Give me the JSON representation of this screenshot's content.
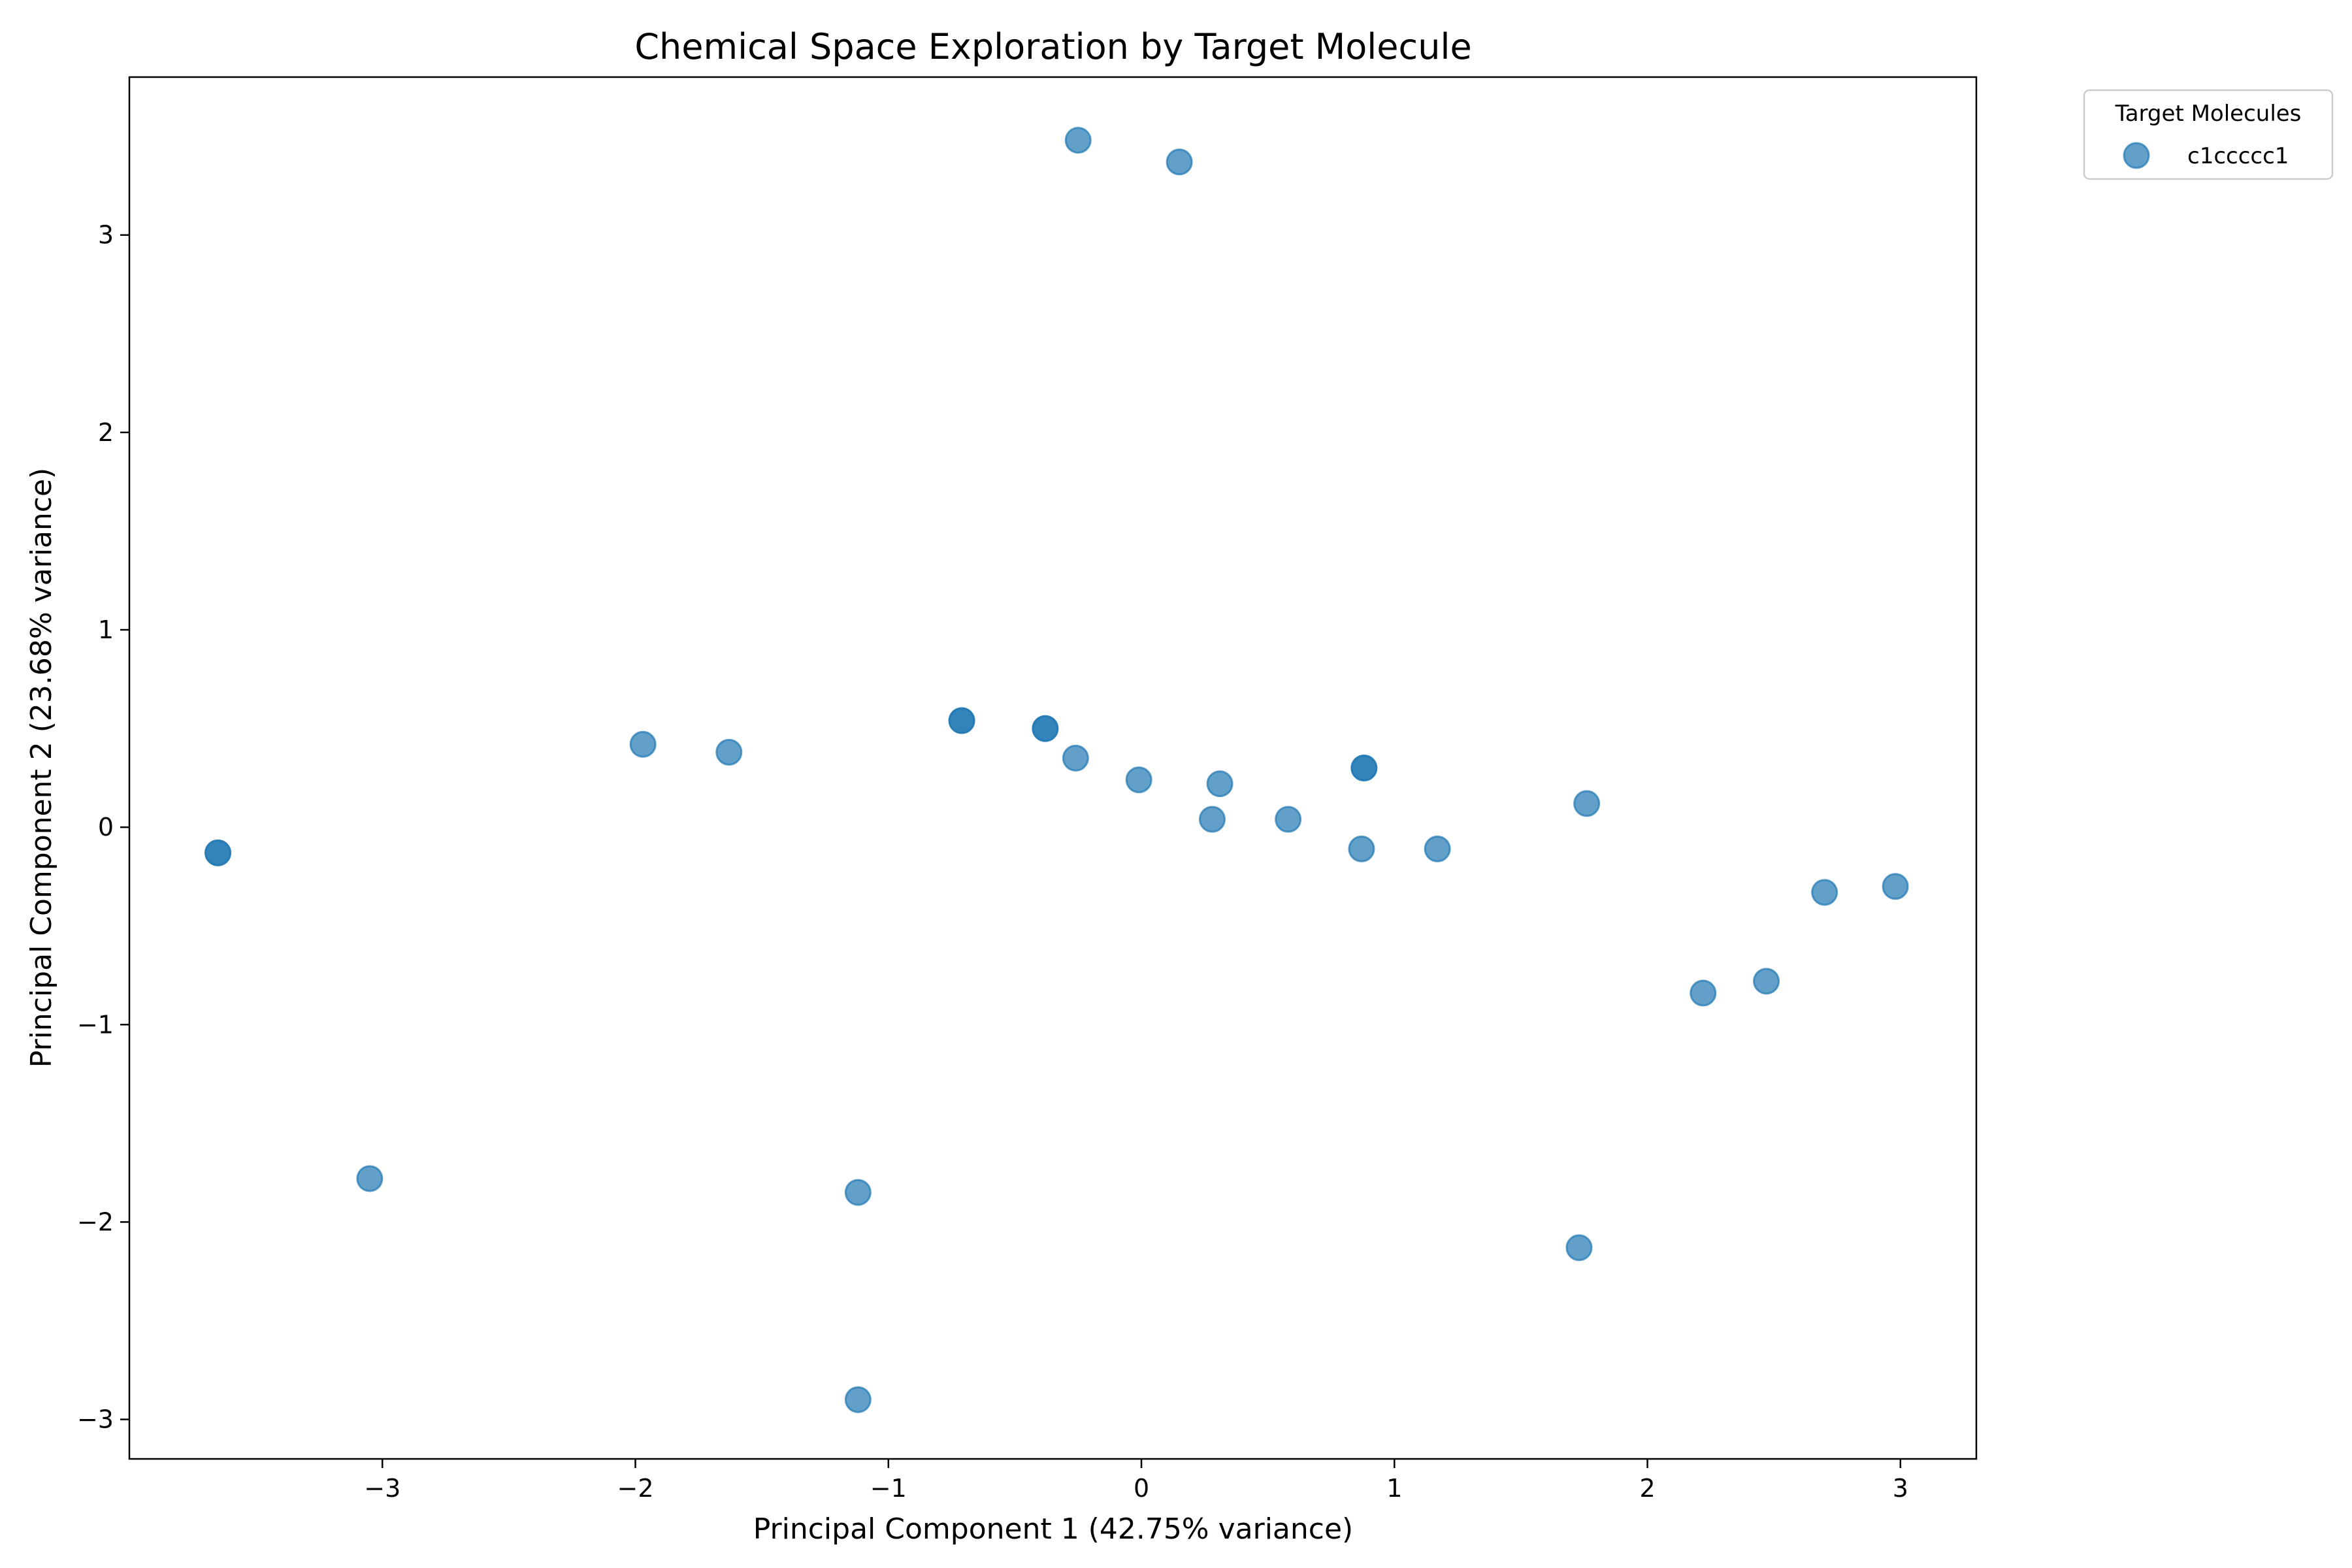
{
  "chart_data": {
    "type": "scatter",
    "title": "Chemical Space Exploration by Target Molecule",
    "xlabel": "Principal Component 1 (42.75% variance)",
    "ylabel": "Principal Component 2 (23.68% variance)",
    "xlim": [
      -4.0,
      3.3
    ],
    "ylim": [
      -3.2,
      3.8
    ],
    "xticks": [
      -3,
      -2,
      -1,
      0,
      1,
      2,
      3
    ],
    "yticks": [
      -3,
      -2,
      -1,
      0,
      1,
      2,
      3
    ],
    "grid": false,
    "legend": {
      "title": "Target Molecules",
      "placement": "outside-top-right"
    },
    "colors": {
      "series": "#1f77b4",
      "axes": "#000000"
    },
    "series": [
      {
        "name": "c1ccccc1",
        "x": [
          -0.25,
          0.15,
          -1.97,
          -1.63,
          -0.71,
          -0.71,
          -0.38,
          -0.38,
          -0.26,
          -0.01,
          0.31,
          0.28,
          0.58,
          0.88,
          0.88,
          0.87,
          1.17,
          1.76,
          -3.65,
          -3.65,
          2.7,
          2.98,
          2.22,
          2.47,
          -3.05,
          -1.12,
          1.73,
          -1.12
        ],
        "y": [
          3.48,
          3.37,
          0.42,
          0.38,
          0.54,
          0.54,
          0.5,
          0.5,
          0.35,
          0.24,
          0.22,
          0.04,
          0.04,
          0.3,
          0.3,
          -0.11,
          -0.11,
          0.12,
          -0.13,
          -0.13,
          -0.33,
          -0.3,
          -0.84,
          -0.78,
          -1.78,
          -1.85,
          -2.13,
          -2.9
        ]
      }
    ]
  }
}
